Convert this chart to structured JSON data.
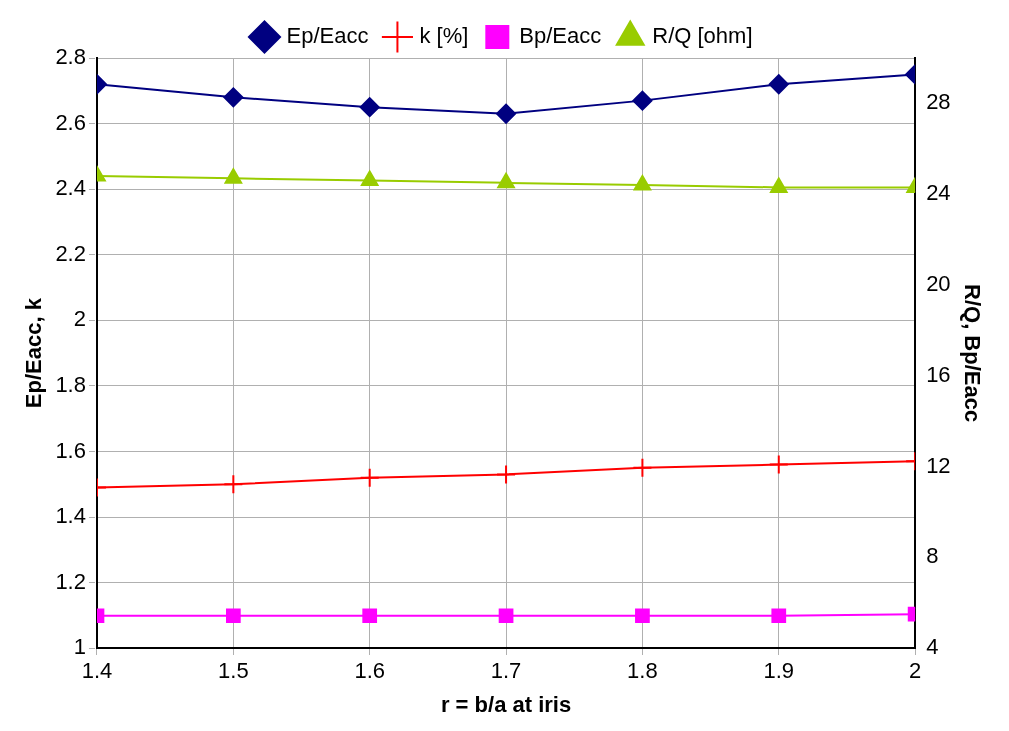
{
  "chart_data": {
    "type": "line",
    "xlabel": "r = b/a at iris",
    "ylabel": "Ep/Eacc, k",
    "y2label": "R/Q, Bp/Eacc",
    "x": [
      1.4,
      1.5,
      1.6,
      1.7,
      1.8,
      1.9,
      2
    ],
    "series": [
      {
        "name": "Ep/Eacc",
        "color": "#000080",
        "marker": "diamond",
        "values": [
          2.72,
          2.68,
          2.65,
          2.63,
          2.67,
          2.72,
          2.75
        ]
      },
      {
        "name": "k [%]",
        "color": "#ff0000",
        "marker": "cross",
        "values": [
          1.49,
          1.5,
          1.52,
          1.53,
          1.55,
          1.56,
          1.57
        ]
      },
      {
        "name": "Bp/Eacc",
        "color": "#ff00ff",
        "marker": "square",
        "axis": "y2",
        "values": [
          5.43,
          5.43,
          5.43,
          5.43,
          5.43,
          5.43,
          5.5
        ]
      },
      {
        "name": "R/Q [ohm]",
        "color": "#99cc00",
        "marker": "triangle",
        "axis": "y2",
        "values": [
          24.8,
          24.7,
          24.6,
          24.5,
          24.4,
          24.3,
          24.3
        ]
      }
    ],
    "xlim": [
      1.4,
      2
    ],
    "xticks": [
      1.4,
      1.5,
      1.6,
      1.7,
      1.8,
      1.9,
      2
    ],
    "ylim": [
      1,
      2.8
    ],
    "yticks": [
      1,
      1.2,
      1.4,
      1.6,
      1.8,
      2,
      2.2,
      2.4,
      2.6,
      2.8
    ],
    "y2lim": [
      4,
      30
    ],
    "y2ticks": [
      4,
      8,
      12,
      16,
      20,
      24,
      28
    ],
    "grid": true,
    "line_style": "solid",
    "legend": "top"
  }
}
